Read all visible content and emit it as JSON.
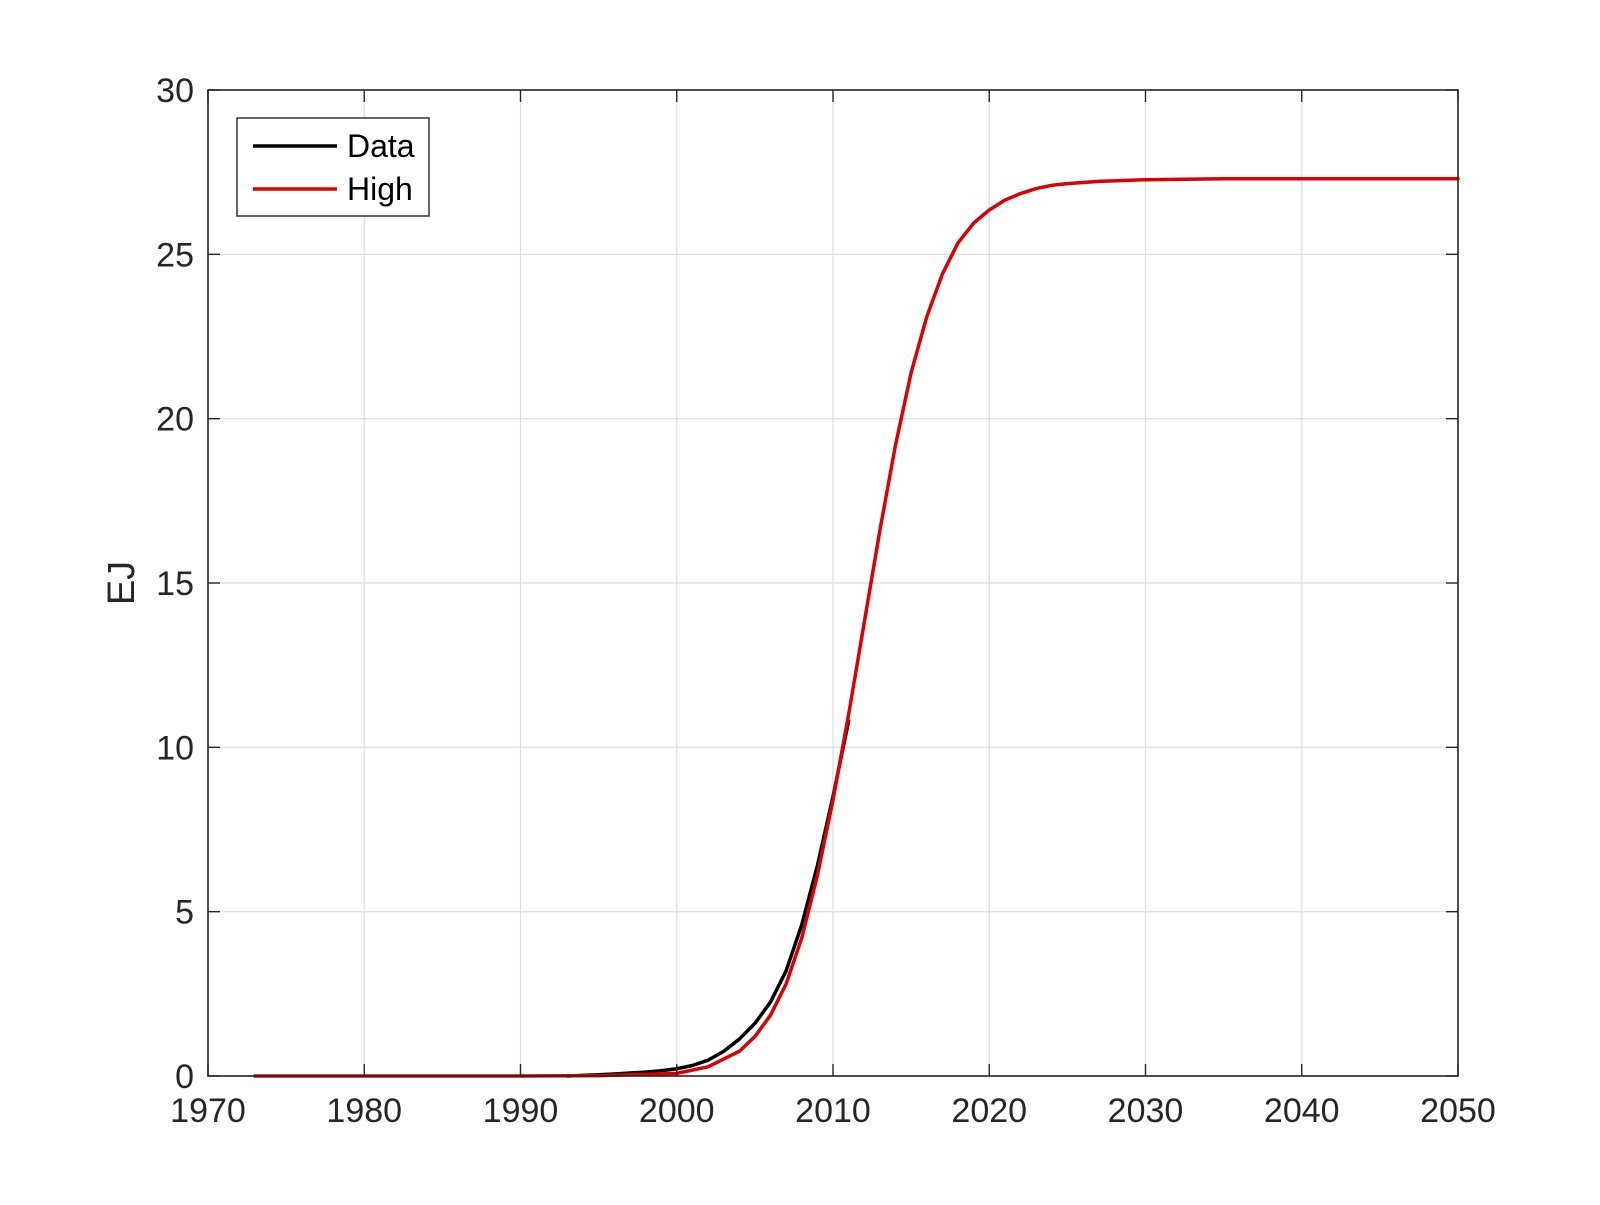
{
  "chart_data": {
    "type": "line",
    "title": "",
    "xlabel": "",
    "ylabel": "EJ",
    "xlim": [
      1970,
      2050
    ],
    "ylim": [
      0,
      30
    ],
    "x_ticks": [
      1970,
      1980,
      1990,
      2000,
      2010,
      2020,
      2030,
      2040,
      2050
    ],
    "y_ticks": [
      0,
      5,
      10,
      15,
      20,
      25,
      30
    ],
    "x_tick_labels": [
      "1970",
      "1980",
      "1990",
      "2000",
      "2010",
      "2020",
      "2030",
      "2040",
      "2050"
    ],
    "y_tick_labels": [
      "0",
      "5",
      "10",
      "15",
      "20",
      "25",
      "30"
    ],
    "grid": true,
    "legend_position": "top-left",
    "series": [
      {
        "name": "Data",
        "color": "#000000",
        "x": [
          1993,
          1994,
          1995,
          1996,
          1997,
          1998,
          1999,
          2000,
          2001,
          2002,
          2003,
          2004,
          2005,
          2006,
          2007,
          2008,
          2009,
          2010,
          2011
        ],
        "y": [
          0.0,
          0.02,
          0.04,
          0.06,
          0.09,
          0.12,
          0.16,
          0.22,
          0.32,
          0.48,
          0.75,
          1.12,
          1.6,
          2.25,
          3.2,
          4.6,
          6.4,
          8.5,
          10.8
        ]
      },
      {
        "name": "High",
        "color": "#dd0000",
        "x": [
          1973,
          1980,
          1990,
          1995,
          2000,
          2002,
          2004,
          2005,
          2006,
          2007,
          2008,
          2009,
          2010,
          2011,
          2012,
          2013,
          2014,
          2015,
          2016,
          2017,
          2018,
          2019,
          2020,
          2021,
          2022,
          2023,
          2024,
          2025,
          2027,
          2030,
          2035,
          2040,
          2045,
          2050
        ],
        "y": [
          0.0,
          0.0,
          0.0,
          0.01,
          0.08,
          0.28,
          0.75,
          1.2,
          1.85,
          2.8,
          4.2,
          6.1,
          8.4,
          11.0,
          13.8,
          16.6,
          19.2,
          21.4,
          23.1,
          24.4,
          25.35,
          25.95,
          26.35,
          26.65,
          26.85,
          27.0,
          27.1,
          27.15,
          27.22,
          27.27,
          27.3,
          27.3,
          27.3,
          27.3
        ]
      }
    ]
  }
}
